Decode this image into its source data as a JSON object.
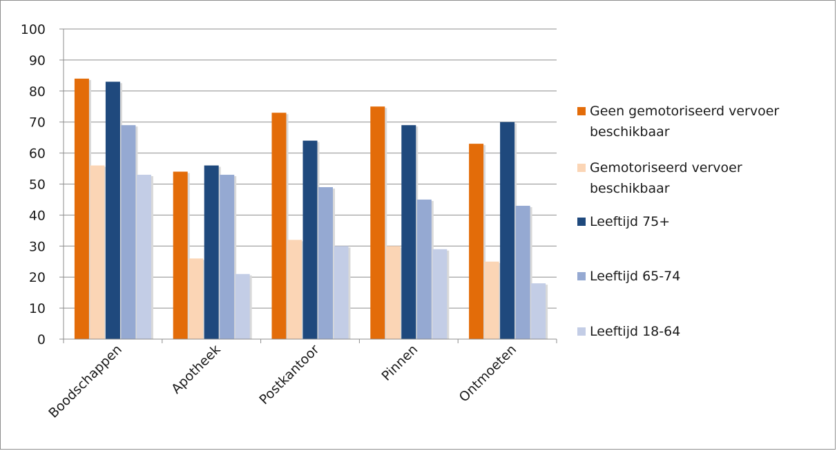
{
  "chart_data": {
    "type": "bar",
    "categories": [
      "Boodschappen",
      "Apotheek",
      "Postkantoor",
      "Pinnen",
      "Ontmoeten"
    ],
    "series": [
      {
        "name": "Geen gemotoriseerd vervoer beschikbaar",
        "color": "#e36c09",
        "values": [
          84,
          54,
          73,
          75,
          63
        ]
      },
      {
        "name": "Gemotoriseerd vervoer beschikbaar",
        "color": "#fbd5b5",
        "values": [
          56,
          26,
          32,
          30,
          25
        ]
      },
      {
        "name": "Leeftijd 75+",
        "color": "#1f497d",
        "values": [
          83,
          56,
          64,
          69,
          70
        ]
      },
      {
        "name": "Leeftijd 65-74",
        "color": "#95a9d2",
        "values": [
          69,
          53,
          49,
          45,
          43
        ]
      },
      {
        "name": "Leeftijd 18-64",
        "color": "#c3cde6",
        "values": [
          53,
          21,
          30,
          29,
          18
        ]
      }
    ],
    "ylim": [
      0,
      100
    ],
    "yticks": [
      0,
      10,
      20,
      30,
      40,
      50,
      60,
      70,
      80,
      90,
      100
    ],
    "grid": true,
    "legend_position": "right",
    "title": "",
    "xlabel": "",
    "ylabel": ""
  }
}
